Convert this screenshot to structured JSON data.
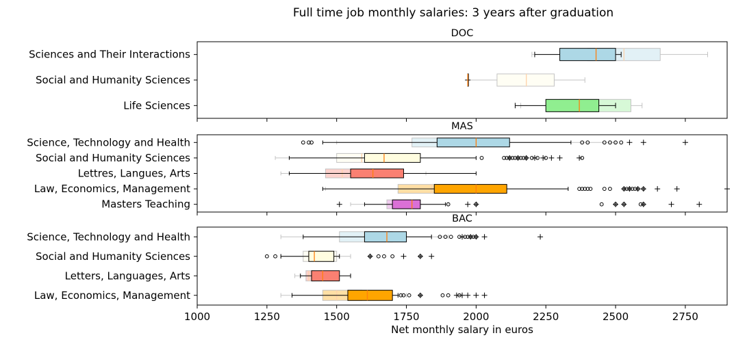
{
  "chart_data": {
    "type": "boxplot",
    "title": "Full time job monthly salaries: 3 years after graduation",
    "xlabel": "Net monthly salary in euros",
    "xlim": [
      1000,
      2900
    ],
    "xticks": [
      "1000",
      "1250",
      "1500",
      "1750",
      "2000",
      "2250",
      "2500",
      "2750"
    ],
    "xtick_values": [
      1000,
      1250,
      1500,
      1750,
      2000,
      2250,
      2500,
      2750
    ],
    "panels": [
      {
        "title": "DOC",
        "categories": [
          {
            "label": "Sciences and Their Interactions",
            "color": "#add8e6",
            "faded": {
              "whislo": 2200,
              "q1": 2400,
              "med": 2530,
              "q3": 2660,
              "whishi": 2830,
              "fliers": []
            },
            "main": {
              "whislo": 2210,
              "q1": 2300,
              "med": 2430,
              "q3": 2500,
              "whishi": 2520,
              "fliers": []
            }
          },
          {
            "label": "Social and Humanity Sciences",
            "color": "#fffde0",
            "faded": {
              "whislo": 1970,
              "q1": 2075,
              "med": 2180,
              "q3": 2280,
              "whishi": 2390,
              "fliers": [
                1970
              ]
            },
            "main": {
              "whislo": 1970,
              "q1": 1970,
              "med": 1970,
              "q3": 1970,
              "whishi": 1970,
              "fliers": []
            }
          },
          {
            "label": "Life Sciences",
            "color": "#90ee90",
            "faded": {
              "whislo": 2160,
              "q1": 2300,
              "med": 2400,
              "q3": 2555,
              "whishi": 2595,
              "fliers": []
            },
            "main": {
              "whislo": 2140,
              "q1": 2250,
              "med": 2370,
              "q3": 2440,
              "whishi": 2500,
              "fliers": []
            }
          }
        ]
      },
      {
        "title": "MAS",
        "categories": [
          {
            "label": "Science, Technology and Health",
            "color": "#add8e6",
            "faded": {
              "whislo": 1500,
              "q1": 1770,
              "med": 1900,
              "q3": 2000,
              "whishi": 2500,
              "fliers": [
                2550,
                2600,
                2750
              ]
            },
            "main": {
              "whislo": 1450,
              "q1": 1860,
              "med": 2000,
              "q3": 2120,
              "whishi": 2340,
              "fliers": [
                1380,
                1400,
                1410,
                2380,
                2400,
                2460,
                2480,
                2500,
                2520
              ]
            }
          },
          {
            "label": "Social and Humanity Sciences",
            "color": "#fffde0",
            "faded": {
              "whislo": 1280,
              "q1": 1500,
              "med": 1590,
              "q3": 1700,
              "whishi": 2000,
              "fliers": [
                2120,
                2150,
                2180,
                2210,
                2240,
                2270,
                2300,
                2370
              ]
            },
            "main": {
              "whislo": 1330,
              "q1": 1600,
              "med": 1670,
              "q3": 1800,
              "whishi": 2000,
              "fliers": [
                2020,
                2100,
                2110,
                2120,
                2130,
                2140,
                2150,
                2160,
                2170,
                2180,
                2200,
                2220,
                2250,
                2380
              ]
            }
          },
          {
            "label": "Lettres, Langues, Arts",
            "color": "#fa8072",
            "faded": {
              "whislo": 1300,
              "q1": 1460,
              "med": 1520,
              "q3": 1590,
              "whishi": 1820,
              "fliers": []
            },
            "main": {
              "whislo": 1330,
              "q1": 1550,
              "med": 1630,
              "q3": 1740,
              "whishi": 2000,
              "fliers": []
            }
          },
          {
            "label": "Law, Economics, Management",
            "color": "#ffa500",
            "faded": {
              "whislo": 1460,
              "q1": 1720,
              "med": 1840,
              "q3": 1850,
              "whishi": 2330,
              "fliers": [
                2530,
                2550,
                2580,
                2600,
                2650,
                2720,
                2900
              ]
            },
            "main": {
              "whislo": 1450,
              "q1": 1850,
              "med": 2000,
              "q3": 2110,
              "whishi": 2330,
              "fliers": [
                2370,
                2380,
                2390,
                2400,
                2410,
                2460,
                2480,
                2530,
                2540,
                2550,
                2560,
                2570,
                2580,
                2600
              ]
            }
          },
          {
            "label": "Masters Teaching",
            "color": "#da70d6",
            "faded": {
              "whislo": 1550,
              "q1": 1680,
              "med": 1720,
              "q3": 1800,
              "whishi": 1900,
              "fliers": [
                1510,
                1970,
                2000,
                2500,
                2530,
                2600,
                2700,
                2800
              ]
            },
            "main": {
              "whislo": 1600,
              "q1": 1700,
              "med": 1770,
              "q3": 1800,
              "whishi": 1890,
              "fliers": [
                1900,
                2000,
                2450,
                2500,
                2530,
                2590,
                2600
              ]
            }
          }
        ]
      },
      {
        "title": "BAC",
        "categories": [
          {
            "label": "Science, Technology and Health",
            "color": "#add8e6",
            "faded": {
              "whislo": 1300,
              "q1": 1510,
              "med": 1600,
              "q3": 1700,
              "whishi": 1900,
              "fliers": [
                1950,
                1980,
                2000,
                2030,
                2230
              ]
            },
            "main": {
              "whislo": 1380,
              "q1": 1600,
              "med": 1680,
              "q3": 1750,
              "whishi": 1840,
              "fliers": [
                1870,
                1890,
                1910,
                1940,
                1960,
                1970,
                1980,
                1990,
                2000
              ]
            }
          },
          {
            "label": "Social and Humanity Sciences",
            "color": "#fffde0",
            "faded": {
              "whislo": 1300,
              "q1": 1380,
              "med": 1400,
              "q3": 1500,
              "whishi": 1550,
              "fliers": [
                1620,
                1740,
                1800,
                1840
              ]
            },
            "main": {
              "whislo": 1300,
              "q1": 1400,
              "med": 1420,
              "q3": 1490,
              "whishi": 1510,
              "fliers": [
                1250,
                1280,
                1620,
                1650,
                1670,
                1700,
                1800
              ]
            }
          },
          {
            "label": "Letters, Languages, Arts",
            "color": "#fa8072",
            "faded": {
              "whislo": 1350,
              "q1": 1390,
              "med": 1400,
              "q3": 1420,
              "whishi": 1450,
              "fliers": []
            },
            "main": {
              "whislo": 1370,
              "q1": 1410,
              "med": 1450,
              "q3": 1510,
              "whishi": 1550,
              "fliers": []
            }
          },
          {
            "label": "Law, Economics, Management",
            "color": "#ffa500",
            "faded": {
              "whislo": 1300,
              "q1": 1450,
              "med": 1500,
              "q3": 1590,
              "whishi": 1750,
              "fliers": [
                1800,
                1930,
                1950,
                1970,
                2000,
                2030
              ]
            },
            "main": {
              "whislo": 1340,
              "q1": 1540,
              "med": 1610,
              "q3": 1700,
              "whishi": 1720,
              "fliers": [
                1730,
                1740,
                1760,
                1800,
                1880,
                1900,
                1940
              ]
            }
          }
        ]
      }
    ]
  }
}
